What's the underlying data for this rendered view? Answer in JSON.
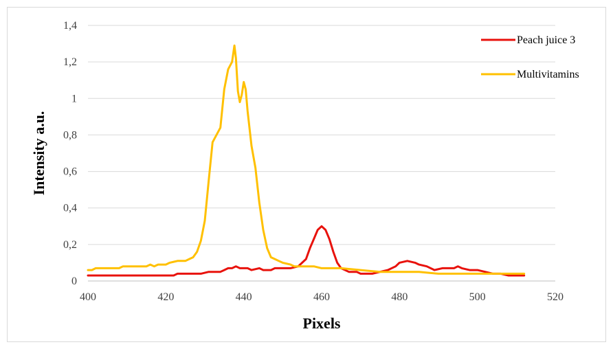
{
  "chart_data": {
    "type": "line",
    "title": "",
    "xlabel": "Pixels",
    "ylabel": "Intensity a.u.",
    "xlim": [
      400,
      520
    ],
    "ylim": [
      0,
      1.4
    ],
    "x_ticks": [
      "400",
      "420",
      "440",
      "460",
      "480",
      "500",
      "520"
    ],
    "y_ticks": [
      "0",
      "0,2",
      "0,4",
      "0,6",
      "0,8",
      "1",
      "1,2",
      "1,4"
    ],
    "grid": "horizontal",
    "legend_position": "top-right",
    "series": [
      {
        "name": "Peach juice 3",
        "color": "#e8120c",
        "points": [
          [
            400,
            0.03
          ],
          [
            405,
            0.03
          ],
          [
            410,
            0.03
          ],
          [
            415,
            0.03
          ],
          [
            420,
            0.03
          ],
          [
            422,
            0.03
          ],
          [
            423,
            0.04
          ],
          [
            426,
            0.04
          ],
          [
            429,
            0.04
          ],
          [
            431,
            0.05
          ],
          [
            434,
            0.05
          ],
          [
            435,
            0.06
          ],
          [
            436,
            0.07
          ],
          [
            437,
            0.07
          ],
          [
            438,
            0.08
          ],
          [
            439,
            0.07
          ],
          [
            441,
            0.07
          ],
          [
            442,
            0.06
          ],
          [
            444,
            0.07
          ],
          [
            445,
            0.06
          ],
          [
            447,
            0.06
          ],
          [
            448,
            0.07
          ],
          [
            452,
            0.07
          ],
          [
            454,
            0.08
          ],
          [
            456,
            0.12
          ],
          [
            457,
            0.18
          ],
          [
            458,
            0.23
          ],
          [
            459,
            0.28
          ],
          [
            460,
            0.3
          ],
          [
            461,
            0.28
          ],
          [
            462,
            0.23
          ],
          [
            463,
            0.16
          ],
          [
            464,
            0.1
          ],
          [
            465,
            0.07
          ],
          [
            467,
            0.05
          ],
          [
            469,
            0.05
          ],
          [
            470,
            0.04
          ],
          [
            473,
            0.04
          ],
          [
            475,
            0.05
          ],
          [
            477,
            0.06
          ],
          [
            479,
            0.08
          ],
          [
            480,
            0.1
          ],
          [
            482,
            0.11
          ],
          [
            484,
            0.1
          ],
          [
            485,
            0.09
          ],
          [
            487,
            0.08
          ],
          [
            489,
            0.06
          ],
          [
            491,
            0.07
          ],
          [
            494,
            0.07
          ],
          [
            495,
            0.08
          ],
          [
            496,
            0.07
          ],
          [
            498,
            0.06
          ],
          [
            500,
            0.06
          ],
          [
            502,
            0.05
          ],
          [
            504,
            0.04
          ],
          [
            506,
            0.04
          ],
          [
            508,
            0.03
          ],
          [
            510,
            0.03
          ],
          [
            512,
            0.03
          ]
        ]
      },
      {
        "name": "Multivitamins",
        "color": "#ffc000",
        "points": [
          [
            400,
            0.06
          ],
          [
            401,
            0.06
          ],
          [
            402,
            0.07
          ],
          [
            404,
            0.07
          ],
          [
            408,
            0.07
          ],
          [
            409,
            0.08
          ],
          [
            412,
            0.08
          ],
          [
            415,
            0.08
          ],
          [
            416,
            0.09
          ],
          [
            417,
            0.08
          ],
          [
            418,
            0.09
          ],
          [
            420,
            0.09
          ],
          [
            421,
            0.1
          ],
          [
            423,
            0.11
          ],
          [
            425,
            0.11
          ],
          [
            426,
            0.12
          ],
          [
            427,
            0.13
          ],
          [
            428,
            0.16
          ],
          [
            429,
            0.22
          ],
          [
            430,
            0.33
          ],
          [
            431,
            0.55
          ],
          [
            432,
            0.76
          ],
          [
            433,
            0.8
          ],
          [
            434,
            0.84
          ],
          [
            435,
            1.05
          ],
          [
            436,
            1.16
          ],
          [
            437,
            1.2
          ],
          [
            437.6,
            1.29
          ],
          [
            438,
            1.22
          ],
          [
            438.5,
            1.04
          ],
          [
            439,
            0.98
          ],
          [
            439.5,
            1.02
          ],
          [
            440,
            1.09
          ],
          [
            440.5,
            1.05
          ],
          [
            441,
            0.93
          ],
          [
            442,
            0.74
          ],
          [
            443,
            0.62
          ],
          [
            444,
            0.43
          ],
          [
            445,
            0.28
          ],
          [
            446,
            0.18
          ],
          [
            447,
            0.13
          ],
          [
            448,
            0.12
          ],
          [
            449,
            0.11
          ],
          [
            450,
            0.1
          ],
          [
            452,
            0.09
          ],
          [
            453,
            0.08
          ],
          [
            455,
            0.08
          ],
          [
            457,
            0.08
          ],
          [
            458,
            0.08
          ],
          [
            460,
            0.07
          ],
          [
            465,
            0.07
          ],
          [
            470,
            0.06
          ],
          [
            475,
            0.05
          ],
          [
            480,
            0.05
          ],
          [
            485,
            0.05
          ],
          [
            490,
            0.04
          ],
          [
            495,
            0.04
          ],
          [
            500,
            0.04
          ],
          [
            505,
            0.04
          ],
          [
            510,
            0.04
          ],
          [
            512,
            0.04
          ]
        ]
      }
    ]
  }
}
